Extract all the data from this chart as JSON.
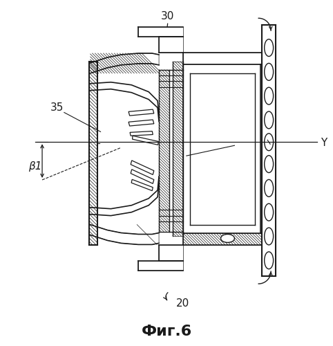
{
  "title": "Фиг.6",
  "label_30": "30",
  "label_35": "35",
  "label_20": "20",
  "label_Y": "Y",
  "label_beta": "β1",
  "bg_color": "#ffffff",
  "line_color": "#1a1a1a",
  "fig_width": 4.82,
  "fig_height": 5.0,
  "dpi": 100
}
